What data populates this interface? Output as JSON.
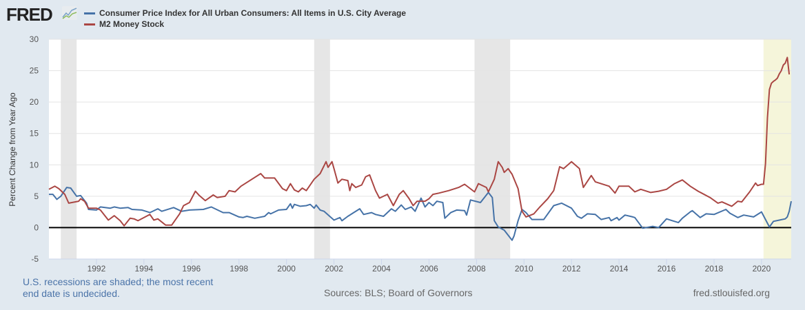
{
  "header": {
    "logo_text": "FRED"
  },
  "chart_data": {
    "type": "line",
    "xlabel": "",
    "ylabel": "Percent Change from Year Ago",
    "xlim": [
      "1990-01",
      "2021-04"
    ],
    "ylim": [
      -5,
      30
    ],
    "yticks": [
      "30",
      "25",
      "20",
      "15",
      "10",
      "5",
      "0",
      "-5"
    ],
    "xticks": [
      "1992",
      "1994",
      "1996",
      "1998",
      "2000",
      "2002",
      "2004",
      "2006",
      "2008",
      "2010",
      "2012",
      "2014",
      "2016",
      "2018",
      "2020"
    ],
    "grid": true,
    "legend_position": "top-left",
    "recessions": [
      [
        "1990-07",
        "1991-03"
      ],
      [
        "2001-03",
        "2001-11"
      ],
      [
        "2007-12",
        "2009-06"
      ],
      [
        "2020-02",
        "2021-04"
      ]
    ],
    "colors": {
      "recession": "#e6e6e6",
      "current_recession": "#f5f5da",
      "zero_line": "#000000"
    },
    "series": [
      {
        "name": "Consumer Price Index for All Urban Consumers: All Items in U.S. City Average",
        "color": "#4572a7",
        "points": [
          [
            "1990-01",
            5.3
          ],
          [
            "1990-03",
            5.3
          ],
          [
            "1990-05",
            4.5
          ],
          [
            "1990-07",
            5.0
          ],
          [
            "1990-10",
            6.4
          ],
          [
            "1990-12",
            6.3
          ],
          [
            "1991-03",
            5.0
          ],
          [
            "1991-05",
            5.1
          ],
          [
            "1991-08",
            3.9
          ],
          [
            "1991-09",
            2.9
          ],
          [
            "1992-01",
            2.8
          ],
          [
            "1992-03",
            3.3
          ],
          [
            "1992-08",
            3.1
          ],
          [
            "1992-10",
            3.3
          ],
          [
            "1993-01",
            3.1
          ],
          [
            "1993-05",
            3.2
          ],
          [
            "1993-07",
            2.9
          ],
          [
            "1993-12",
            2.8
          ],
          [
            "1994-04",
            2.4
          ],
          [
            "1994-08",
            3.0
          ],
          [
            "1994-10",
            2.6
          ],
          [
            "1995-04",
            3.2
          ],
          [
            "1995-08",
            2.6
          ],
          [
            "1995-12",
            2.8
          ],
          [
            "1996-07",
            2.9
          ],
          [
            "1996-11",
            3.3
          ],
          [
            "1997-05",
            2.4
          ],
          [
            "1997-08",
            2.4
          ],
          [
            "1998-01",
            1.7
          ],
          [
            "1998-03",
            1.6
          ],
          [
            "1998-05",
            1.8
          ],
          [
            "1998-09",
            1.5
          ],
          [
            "1999-02",
            1.8
          ],
          [
            "1999-04",
            2.4
          ],
          [
            "1999-05",
            2.2
          ],
          [
            "1999-09",
            2.8
          ],
          [
            "2000-01",
            2.9
          ],
          [
            "2000-03",
            3.8
          ],
          [
            "2000-04",
            3.1
          ],
          [
            "2000-05",
            3.7
          ],
          [
            "2000-08",
            3.4
          ],
          [
            "2000-11",
            3.5
          ],
          [
            "2001-01",
            3.7
          ],
          [
            "2001-03",
            3.1
          ],
          [
            "2001-04",
            3.6
          ],
          [
            "2001-06",
            2.8
          ],
          [
            "2001-08",
            2.6
          ],
          [
            "2002-01",
            1.2
          ],
          [
            "2002-04",
            1.6
          ],
          [
            "2002-05",
            1.1
          ],
          [
            "2002-08",
            1.8
          ],
          [
            "2002-10",
            2.2
          ],
          [
            "2003-02",
            3.0
          ],
          [
            "2003-04",
            2.1
          ],
          [
            "2003-08",
            2.4
          ],
          [
            "2003-10",
            2.1
          ],
          [
            "2004-02",
            1.8
          ],
          [
            "2004-06",
            3.0
          ],
          [
            "2004-08",
            2.6
          ],
          [
            "2004-11",
            3.6
          ],
          [
            "2005-01",
            2.9
          ],
          [
            "2005-04",
            3.3
          ],
          [
            "2005-06",
            2.6
          ],
          [
            "2005-09",
            4.7
          ],
          [
            "2005-11",
            3.3
          ],
          [
            "2006-01",
            4.0
          ],
          [
            "2006-03",
            3.5
          ],
          [
            "2006-05",
            4.2
          ],
          [
            "2006-08",
            4.0
          ],
          [
            "2006-09",
            1.5
          ],
          [
            "2006-12",
            2.4
          ],
          [
            "2007-03",
            2.8
          ],
          [
            "2007-07",
            2.7
          ],
          [
            "2007-08",
            2.0
          ],
          [
            "2007-10",
            4.4
          ],
          [
            "2008-03",
            4.0
          ],
          [
            "2008-07",
            5.6
          ],
          [
            "2008-09",
            4.8
          ],
          [
            "2008-10",
            1.1
          ],
          [
            "2008-12",
            0.1
          ],
          [
            "2009-03",
            -0.4
          ],
          [
            "2009-07",
            -2.0
          ],
          [
            "2009-08",
            -1.3
          ],
          [
            "2009-10",
            1.1
          ],
          [
            "2009-12",
            2.9
          ],
          [
            "2010-02",
            2.4
          ],
          [
            "2010-05",
            1.3
          ],
          [
            "2010-11",
            1.3
          ],
          [
            "2011-04",
            3.5
          ],
          [
            "2011-08",
            3.9
          ],
          [
            "2012-01",
            3.1
          ],
          [
            "2012-04",
            1.8
          ],
          [
            "2012-06",
            1.5
          ],
          [
            "2012-09",
            2.2
          ],
          [
            "2013-01",
            2.1
          ],
          [
            "2013-04",
            1.3
          ],
          [
            "2013-08",
            1.6
          ],
          [
            "2013-09",
            1.1
          ],
          [
            "2013-12",
            1.6
          ],
          [
            "2014-01",
            1.2
          ],
          [
            "2014-04",
            2.0
          ],
          [
            "2014-08",
            1.7
          ],
          [
            "2014-09",
            1.6
          ],
          [
            "2015-01",
            -0.1
          ],
          [
            "2015-06",
            0.2
          ],
          [
            "2015-09",
            0.0
          ],
          [
            "2016-01",
            1.4
          ],
          [
            "2016-04",
            1.1
          ],
          [
            "2016-07",
            0.8
          ],
          [
            "2016-09",
            1.5
          ],
          [
            "2017-01",
            2.5
          ],
          [
            "2017-02",
            2.7
          ],
          [
            "2017-06",
            1.6
          ],
          [
            "2017-09",
            2.2
          ],
          [
            "2018-01",
            2.1
          ],
          [
            "2018-07",
            2.9
          ],
          [
            "2018-09",
            2.3
          ],
          [
            "2019-01",
            1.6
          ],
          [
            "2019-04",
            2.0
          ],
          [
            "2019-09",
            1.7
          ],
          [
            "2020-01",
            2.5
          ],
          [
            "2020-05",
            0.1
          ],
          [
            "2020-07",
            1.0
          ],
          [
            "2020-10",
            1.2
          ],
          [
            "2021-01",
            1.4
          ],
          [
            "2021-02",
            1.7
          ],
          [
            "2021-03",
            2.6
          ],
          [
            "2021-04",
            4.2
          ]
        ]
      },
      {
        "name": "M2 Money Stock",
        "color": "#aa4643",
        "points": [
          [
            "1990-01",
            6.1
          ],
          [
            "1990-04",
            6.6
          ],
          [
            "1990-06",
            6.2
          ],
          [
            "1990-09",
            5.3
          ],
          [
            "1990-11",
            3.9
          ],
          [
            "1991-04",
            4.2
          ],
          [
            "1991-05",
            4.6
          ],
          [
            "1991-07",
            4.2
          ],
          [
            "1991-09",
            3.1
          ],
          [
            "1992-01",
            3.1
          ],
          [
            "1992-03",
            2.8
          ],
          [
            "1992-07",
            1.2
          ],
          [
            "1992-10",
            1.9
          ],
          [
            "1993-01",
            1.1
          ],
          [
            "1993-03",
            0.3
          ],
          [
            "1993-06",
            1.5
          ],
          [
            "1993-08",
            1.4
          ],
          [
            "1993-10",
            1.1
          ],
          [
            "1994-04",
            2.1
          ],
          [
            "1994-06",
            1.2
          ],
          [
            "1994-08",
            1.4
          ],
          [
            "1994-12",
            0.4
          ],
          [
            "1995-03",
            0.4
          ],
          [
            "1995-07",
            2.2
          ],
          [
            "1995-09",
            3.5
          ],
          [
            "1995-12",
            4.0
          ],
          [
            "1996-03",
            5.8
          ],
          [
            "1996-05",
            5.1
          ],
          [
            "1996-08",
            4.3
          ],
          [
            "1996-12",
            5.2
          ],
          [
            "1997-02",
            4.8
          ],
          [
            "1997-06",
            5.0
          ],
          [
            "1997-08",
            5.9
          ],
          [
            "1997-11",
            5.7
          ],
          [
            "1998-02",
            6.6
          ],
          [
            "1998-05",
            7.2
          ],
          [
            "1998-12",
            8.6
          ],
          [
            "1999-02",
            7.9
          ],
          [
            "1999-07",
            7.9
          ],
          [
            "1999-11",
            6.2
          ],
          [
            "2000-01",
            5.9
          ],
          [
            "2000-03",
            7.0
          ],
          [
            "2000-05",
            6.0
          ],
          [
            "2000-07",
            5.7
          ],
          [
            "2000-09",
            6.3
          ],
          [
            "2000-11",
            5.9
          ],
          [
            "2001-03",
            7.7
          ],
          [
            "2001-06",
            8.6
          ],
          [
            "2001-09",
            10.5
          ],
          [
            "2001-10",
            9.6
          ],
          [
            "2001-12",
            10.5
          ],
          [
            "2002-01",
            9.4
          ],
          [
            "2002-03",
            7.1
          ],
          [
            "2002-05",
            7.7
          ],
          [
            "2002-08",
            7.5
          ],
          [
            "2002-09",
            5.9
          ],
          [
            "2002-10",
            7.0
          ],
          [
            "2002-12",
            6.4
          ],
          [
            "2003-03",
            6.8
          ],
          [
            "2003-05",
            8.1
          ],
          [
            "2003-07",
            8.4
          ],
          [
            "2003-10",
            5.9
          ],
          [
            "2003-12",
            4.7
          ],
          [
            "2004-04",
            5.3
          ],
          [
            "2004-07",
            3.5
          ],
          [
            "2004-10",
            5.3
          ],
          [
            "2004-12",
            5.9
          ],
          [
            "2005-03",
            4.6
          ],
          [
            "2005-05",
            3.5
          ],
          [
            "2005-07",
            4.2
          ],
          [
            "2005-11",
            4.2
          ],
          [
            "2006-01",
            4.6
          ],
          [
            "2006-03",
            5.3
          ],
          [
            "2006-06",
            5.5
          ],
          [
            "2006-11",
            5.9
          ],
          [
            "2007-04",
            6.4
          ],
          [
            "2007-07",
            6.9
          ],
          [
            "2007-12",
            5.7
          ],
          [
            "2008-02",
            7.0
          ],
          [
            "2008-06",
            6.4
          ],
          [
            "2008-07",
            5.7
          ],
          [
            "2008-10",
            7.7
          ],
          [
            "2008-12",
            10.5
          ],
          [
            "2009-02",
            9.6
          ],
          [
            "2009-03",
            8.8
          ],
          [
            "2009-05",
            9.4
          ],
          [
            "2009-07",
            8.5
          ],
          [
            "2009-10",
            6.2
          ],
          [
            "2009-12",
            2.6
          ],
          [
            "2010-02",
            1.7
          ],
          [
            "2010-06",
            2.2
          ],
          [
            "2010-09",
            3.3
          ],
          [
            "2011-01",
            4.6
          ],
          [
            "2011-04",
            5.9
          ],
          [
            "2011-07",
            9.7
          ],
          [
            "2011-09",
            9.4
          ],
          [
            "2012-01",
            10.5
          ],
          [
            "2012-05",
            9.4
          ],
          [
            "2012-07",
            6.4
          ],
          [
            "2012-11",
            8.3
          ],
          [
            "2013-01",
            7.3
          ],
          [
            "2013-08",
            6.6
          ],
          [
            "2013-11",
            5.5
          ],
          [
            "2014-01",
            6.6
          ],
          [
            "2014-06",
            6.6
          ],
          [
            "2014-09",
            5.7
          ],
          [
            "2014-12",
            6.1
          ],
          [
            "2015-05",
            5.6
          ],
          [
            "2015-09",
            5.8
          ],
          [
            "2016-01",
            6.1
          ],
          [
            "2016-05",
            7.0
          ],
          [
            "2016-09",
            7.6
          ],
          [
            "2017-01",
            6.6
          ],
          [
            "2017-05",
            5.8
          ],
          [
            "2017-11",
            4.8
          ],
          [
            "2018-03",
            3.9
          ],
          [
            "2018-05",
            4.1
          ],
          [
            "2018-10",
            3.4
          ],
          [
            "2019-01",
            4.2
          ],
          [
            "2019-03",
            4.1
          ],
          [
            "2019-07",
            5.7
          ],
          [
            "2019-10",
            7.1
          ],
          [
            "2019-11",
            6.7
          ],
          [
            "2020-01",
            6.9
          ],
          [
            "2020-02",
            6.9
          ],
          [
            "2020-03",
            10.2
          ],
          [
            "2020-04",
            17.5
          ],
          [
            "2020-05",
            22.0
          ],
          [
            "2020-06",
            23.0
          ],
          [
            "2020-07",
            23.3
          ],
          [
            "2020-08",
            23.5
          ],
          [
            "2020-09",
            23.8
          ],
          [
            "2020-10",
            24.5
          ],
          [
            "2020-11",
            25.0
          ],
          [
            "2020-12",
            25.9
          ],
          [
            "2021-01",
            26.2
          ],
          [
            "2021-02",
            27.1
          ],
          [
            "2021-03",
            24.4
          ]
        ]
      }
    ]
  },
  "footer": {
    "recession_note": "U.S. recessions are shaded; the most recent end date is undecided.",
    "sources": "Sources: BLS; Board of Governors",
    "site": "fred.stlouisfed.org"
  }
}
